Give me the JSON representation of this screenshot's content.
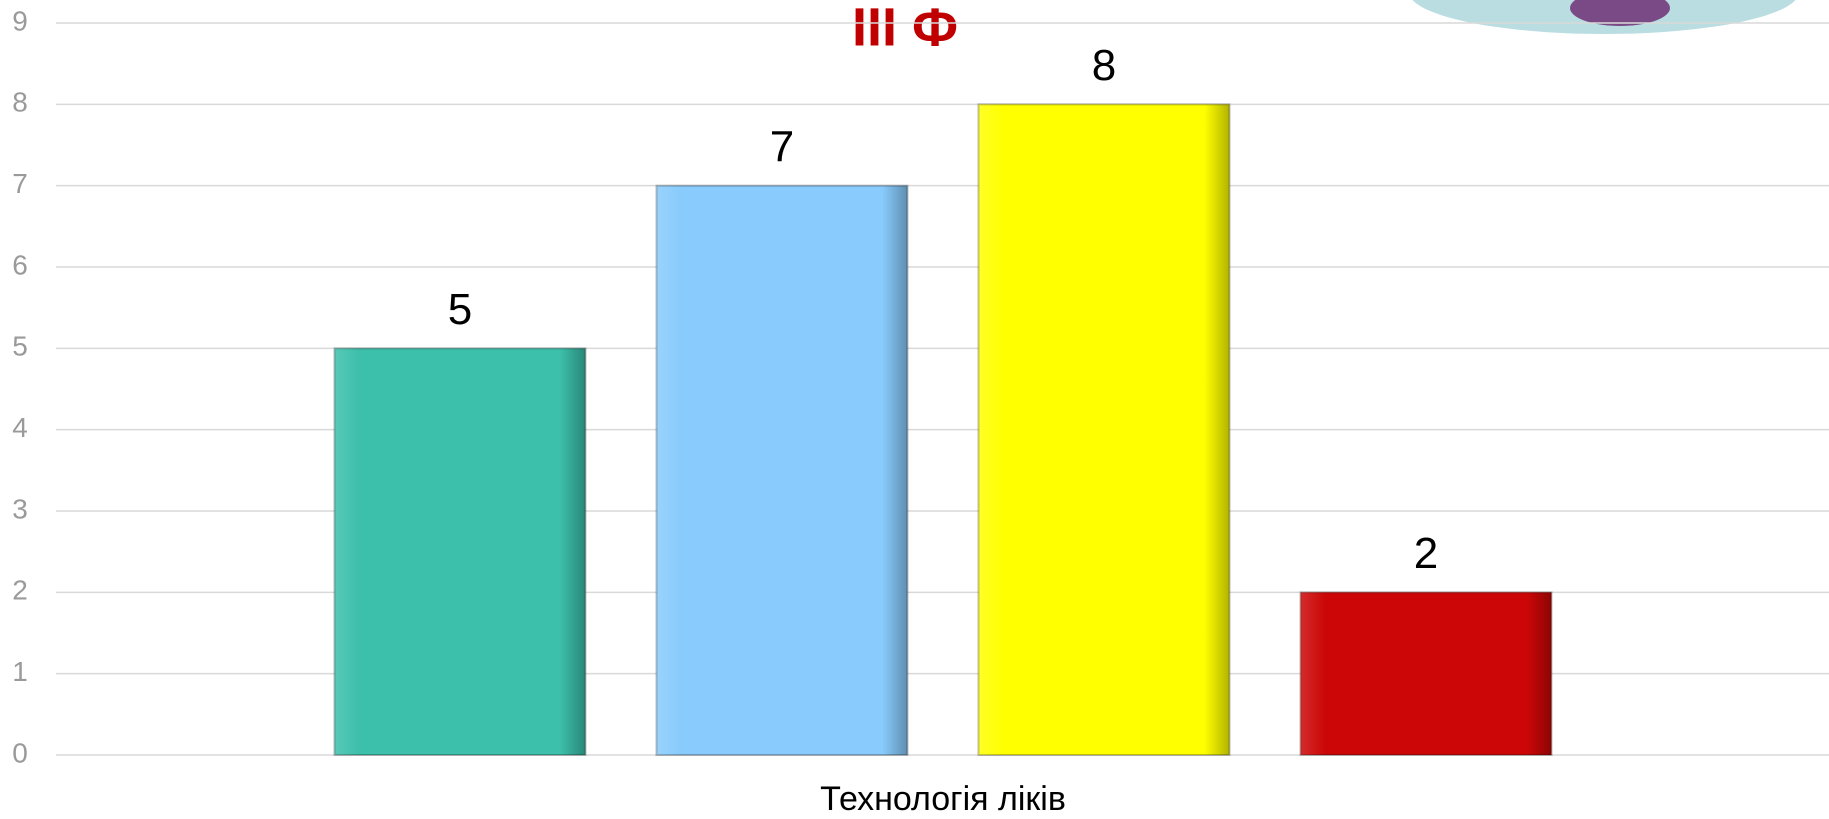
{
  "chart_data": {
    "type": "bar",
    "title": "III Ф",
    "categories": [
      "Технологія ліків"
    ],
    "series": [
      {
        "color": "#3cbfab",
        "values": [
          5
        ]
      },
      {
        "color": "#88cbfc",
        "values": [
          7
        ]
      },
      {
        "color": "#ffff00",
        "values": [
          8
        ]
      },
      {
        "color": "#cc0606",
        "values": [
          2
        ]
      }
    ],
    "ylim": [
      0,
      9
    ],
    "yticks": [
      0,
      1,
      2,
      3,
      4,
      5,
      6,
      7,
      8,
      9
    ],
    "grid": true
  }
}
